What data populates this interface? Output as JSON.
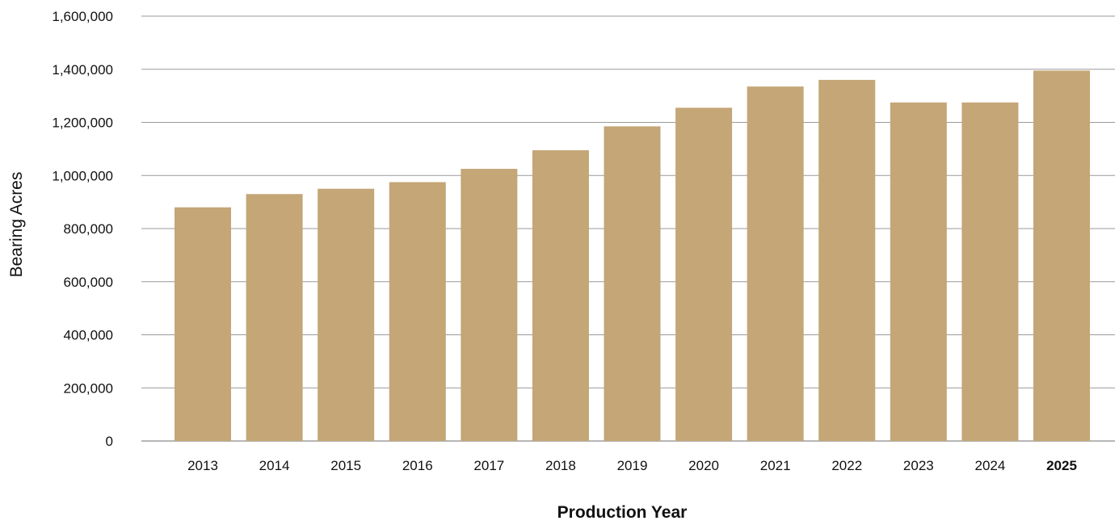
{
  "chart_data": {
    "type": "bar",
    "categories": [
      "2013",
      "2014",
      "2015",
      "2016",
      "2017",
      "2018",
      "2019",
      "2020",
      "2021",
      "2022",
      "2023",
      "2024",
      "2025"
    ],
    "values": [
      880000,
      930000,
      950000,
      975000,
      1025000,
      1095000,
      1185000,
      1255000,
      1335000,
      1360000,
      1275000,
      1275000,
      1395000
    ],
    "highlight_category": "2025",
    "xlabel": "Production Year",
    "ylabel": "Bearing Acres",
    "ylim": [
      0,
      1600000
    ],
    "yticks": [
      0,
      200000,
      400000,
      600000,
      800000,
      1000000,
      1200000,
      1400000,
      1600000
    ],
    "ytick_labels": [
      "0",
      "200,000",
      "400,000",
      "600,000",
      "800,000",
      "1,000,000",
      "1,200,000",
      "1,400,000",
      "1,600,000"
    ],
    "grid": true,
    "bar_color": "#c4a677",
    "grid_color": "#9a9a9a"
  }
}
